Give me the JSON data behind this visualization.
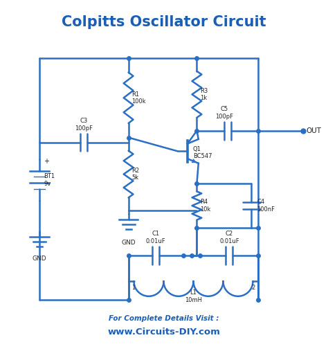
{
  "title": "Colpitts Oscillator Circuit",
  "title_color": "#1b5eb5",
  "title_fontsize": 15,
  "wire_color": "#2a6fc4",
  "wire_lw": 1.8,
  "text_color": "#222222",
  "bg_color": "#ffffff",
  "footer_text1": "For Complete Details Visit :",
  "footer_text2": "www.Circuits-DIY.com",
  "footer_color1": "#1b5eb5",
  "footer_color2": "#1b5eb5"
}
